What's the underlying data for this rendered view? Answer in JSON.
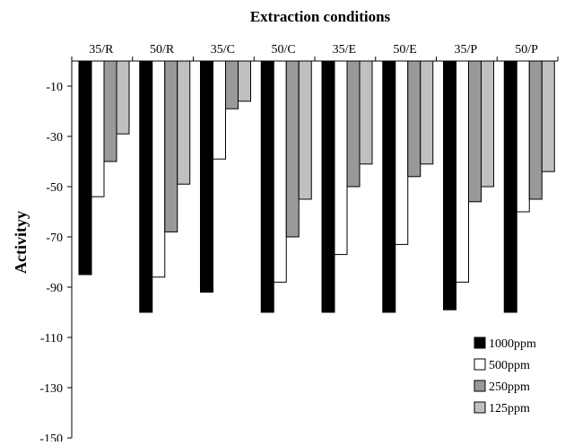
{
  "chart_data": {
    "type": "bar",
    "title": "Extraction conditions",
    "ylabel": "Activityy",
    "xlabel": "",
    "categories": [
      "35/R",
      "50/R",
      "35/C",
      "50/C",
      "35/E",
      "50/E",
      "35/P",
      "50/P"
    ],
    "series": [
      {
        "name": "1000ppm",
        "color": "#000000",
        "values": [
          -85,
          -100,
          -92,
          -100,
          -100,
          -100,
          -99,
          -100
        ]
      },
      {
        "name": "500ppm",
        "color": "#ffffff",
        "values": [
          -54,
          -86,
          -39,
          -88,
          -77,
          -73,
          -88,
          -60
        ]
      },
      {
        "name": "250ppm",
        "color": "#999999",
        "values": [
          -40,
          -68,
          -19,
          -70,
          -50,
          -46,
          -56,
          -55
        ]
      },
      {
        "name": "125ppm",
        "color": "#c0c0c0",
        "values": [
          -29,
          -49,
          -16,
          -55,
          -41,
          -41,
          -50,
          -44
        ]
      }
    ],
    "ylim": [
      -150,
      0
    ],
    "yticks": [
      -10,
      -30,
      -50,
      -70,
      -90,
      -110,
      -130,
      -150
    ],
    "x_axis_position": "top",
    "grid": false,
    "legend_position": "bottom-right"
  }
}
